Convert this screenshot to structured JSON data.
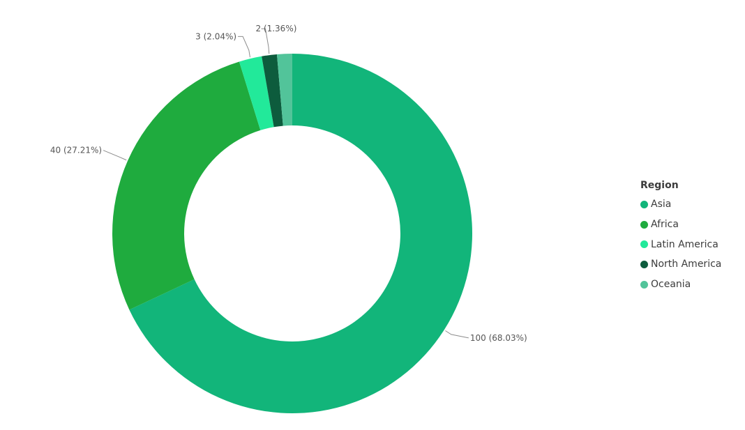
{
  "chart_data": {
    "type": "pie",
    "donut": true,
    "legend": {
      "title": "Region",
      "position": "right"
    },
    "categories": [
      "Asia",
      "Africa",
      "Latin America",
      "North America",
      "Oceania"
    ],
    "values": [
      100,
      40,
      3,
      2,
      2
    ],
    "percentages": [
      "68.03%",
      "27.21%",
      "2.04%",
      "1.36%",
      "1.36%"
    ],
    "data_labels": [
      "100 (68.03%)",
      "40 (27.21%)",
      "3 (2.04%)",
      "2 (1.36%)",
      ""
    ],
    "colors": [
      "#12b57a",
      "#1fab3e",
      "#22e99a",
      "#0d5c3d",
      "#52c49a"
    ]
  }
}
